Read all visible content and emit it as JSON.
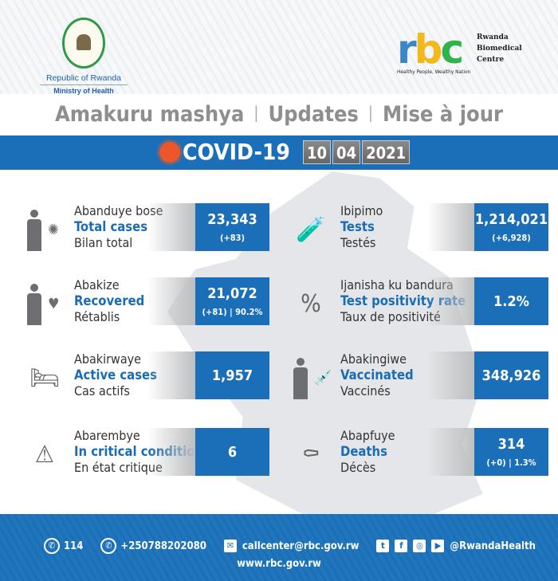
{
  "header": {
    "gov_line1": "Republic of Rwanda",
    "gov_line2": "Ministry of Health",
    "rbc_logo": "rbc",
    "rbc_name": "Rwanda Biomedical Centre",
    "rbc_tagline": "Healthy People, Wealthy Nation"
  },
  "title": {
    "rw": "Amakuru mashya",
    "en": "Updates",
    "fr": "Mise à jour",
    "sep": "|"
  },
  "banner": {
    "label": "COVID-19",
    "day": "10",
    "month": "04",
    "year": "2021"
  },
  "colors": {
    "blue": "#1a6fb8",
    "gray_text": "#8e8e8e",
    "virus": "#e9572b"
  },
  "left": [
    {
      "icon": "person-virus-icon",
      "rw": "Abanduye bose",
      "en": "Total cases",
      "fr": "Bilan total",
      "value": "23,343",
      "delta": "(+83)"
    },
    {
      "icon": "person-shield-heart-icon",
      "rw": "Abakize",
      "en": "Recovered",
      "fr": "Rétablis",
      "value": "21,072",
      "delta": "(+81) | 90.2%"
    },
    {
      "icon": "patient-bed-icon",
      "rw": "Abakirwaye",
      "en": "Active cases",
      "fr": "Cas actifs",
      "value": "1,957",
      "delta": ""
    },
    {
      "icon": "critical-bed-icon",
      "rw": "Abarembye",
      "en": "In critical condition",
      "fr": "En état critique",
      "value": "6",
      "delta": ""
    }
  ],
  "right": [
    {
      "icon": "test-tube-icon",
      "rw": "Ibipimo",
      "en": "Tests",
      "fr": "Testés",
      "value": "1,214,021",
      "delta": "(+6,928)"
    },
    {
      "icon": "test-tubes-percent-icon",
      "rw": "Ijanisha ku bandura",
      "en": "Test positivity rate",
      "fr": "Taux de positivité",
      "value": "1.2%",
      "delta": ""
    },
    {
      "icon": "person-vaccine-icon",
      "rw": "Abakingiwe",
      "en": "Vaccinated",
      "fr": "Vaccinés",
      "value": "348,926",
      "delta": ""
    },
    {
      "icon": "coffin-icon",
      "rw": "Abapfuye",
      "en": "Deaths",
      "fr": "Décès",
      "value": "314",
      "delta": "(+0) | 1.3%"
    }
  ],
  "footer": {
    "hotline": "114",
    "whatsapp": "+250788202080",
    "email": "callcenter@rbc.gov.rw",
    "social": "@RwandaHealth",
    "website": "www.rbc.gov.rw"
  }
}
